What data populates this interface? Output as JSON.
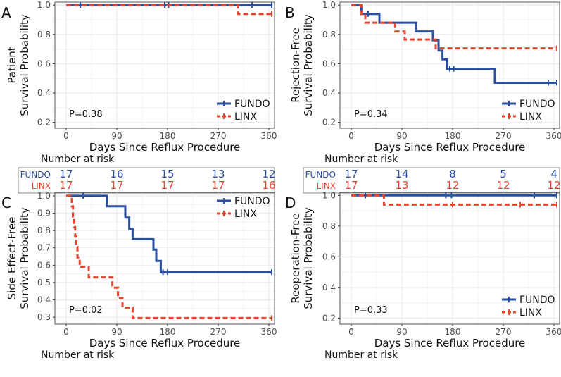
{
  "colors": {
    "fundo": "#2a4ea1",
    "linx": "#e8432e",
    "grid": "#ebebeb",
    "axis": "#333333"
  },
  "figure": {
    "x_axis_label": "Days Since Reflux Procedure",
    "risk_title": "Number at risk"
  },
  "chart_data": [
    {
      "panel_letter": "A",
      "type": "line",
      "subtype": "kaplan-meier",
      "ylabel_line1": "Patient",
      "ylabel_line2": "Survival Probability",
      "xlabel": "Days Since Reflux Procedure",
      "x_ticks": [
        0,
        90,
        180,
        270,
        360
      ],
      "y_ticks": [
        0.2,
        0.4,
        0.6,
        0.8,
        1.0
      ],
      "xlim": [
        -20,
        370
      ],
      "ylim": [
        0.16,
        1.02
      ],
      "p_value": "P=0.38",
      "legend_position": "bottom-right",
      "series": [
        {
          "name": "FUNDO",
          "style": "solid",
          "steps": [
            [
              0,
              1.0
            ],
            [
              365,
              1.0
            ]
          ],
          "censors": [
            [
              25,
              1.0
            ],
            [
              175,
              1.0
            ],
            [
              182,
              1.0
            ],
            [
              330,
              1.0
            ],
            [
              365,
              1.0
            ]
          ]
        },
        {
          "name": "LINX",
          "style": "dashed",
          "steps": [
            [
              0,
              1.0
            ],
            [
              305,
              1.0
            ],
            [
              305,
              0.94
            ],
            [
              365,
              0.94
            ]
          ],
          "censors": [
            [
              365,
              0.94
            ]
          ]
        }
      ],
      "risk_table": {
        "FUNDO": [
          17,
          16,
          15,
          13,
          12
        ],
        "LINX": [
          17,
          17,
          17,
          17,
          16
        ]
      }
    },
    {
      "panel_letter": "B",
      "type": "line",
      "subtype": "kaplan-meier",
      "ylabel_line1": "Rejection-Free",
      "ylabel_line2": "Survival Probability",
      "xlabel": "Days Since Reflux Procedure",
      "x_ticks": [
        0,
        90,
        180,
        270,
        360
      ],
      "y_ticks": [
        0.2,
        0.4,
        0.6,
        0.8,
        1.0
      ],
      "xlim": [
        -20,
        370
      ],
      "ylim": [
        0.16,
        1.02
      ],
      "p_value": "P=0.34",
      "legend_position": "bottom-right",
      "series": [
        {
          "name": "FUNDO",
          "style": "solid",
          "steps": [
            [
              0,
              1.0
            ],
            [
              18,
              1.0
            ],
            [
              18,
              0.94
            ],
            [
              50,
              0.94
            ],
            [
              50,
              0.88
            ],
            [
              115,
              0.88
            ],
            [
              115,
              0.82
            ],
            [
              145,
              0.82
            ],
            [
              145,
              0.76
            ],
            [
              155,
              0.76
            ],
            [
              155,
              0.69
            ],
            [
              162,
              0.69
            ],
            [
              162,
              0.63
            ],
            [
              170,
              0.63
            ],
            [
              170,
              0.565
            ],
            [
              255,
              0.565
            ],
            [
              255,
              0.47
            ],
            [
              365,
              0.47
            ]
          ],
          "censors": [
            [
              30,
              0.94
            ],
            [
              175,
              0.565
            ],
            [
              182,
              0.565
            ],
            [
              350,
              0.47
            ],
            [
              365,
              0.47
            ]
          ]
        },
        {
          "name": "LINX",
          "style": "dashed",
          "steps": [
            [
              0,
              1.0
            ],
            [
              18,
              1.0
            ],
            [
              18,
              0.94
            ],
            [
              25,
              0.94
            ],
            [
              25,
              0.88
            ],
            [
              78,
              0.88
            ],
            [
              78,
              0.82
            ],
            [
              95,
              0.82
            ],
            [
              95,
              0.765
            ],
            [
              150,
              0.765
            ],
            [
              150,
              0.705
            ],
            [
              365,
              0.705
            ]
          ],
          "censors": [
            [
              365,
              0.705
            ]
          ]
        }
      ],
      "risk_table": {
        "FUNDO": [
          17,
          14,
          8,
          5,
          4
        ],
        "LINX": [
          17,
          13,
          12,
          12,
          12
        ]
      }
    },
    {
      "panel_letter": "C",
      "type": "line",
      "subtype": "kaplan-meier",
      "ylabel_line1": "Side Effect-Free",
      "ylabel_line2": "Survival Probability",
      "xlabel": "Days Since Reflux Procedure",
      "x_ticks": [
        0,
        90,
        180,
        270,
        360
      ],
      "y_ticks": [
        0.3,
        0.4,
        0.5,
        0.6,
        0.7,
        0.8,
        0.9,
        1.0
      ],
      "xlim": [
        -20,
        370
      ],
      "ylim": [
        0.26,
        1.02
      ],
      "p_value": "P=0.02",
      "legend_position": "top-right",
      "series": [
        {
          "name": "FUNDO",
          "style": "solid",
          "steps": [
            [
              0,
              1.0
            ],
            [
              72,
              1.0
            ],
            [
              72,
              0.94
            ],
            [
              105,
              0.94
            ],
            [
              105,
              0.875
            ],
            [
              112,
              0.875
            ],
            [
              112,
              0.81
            ],
            [
              118,
              0.81
            ],
            [
              118,
              0.75
            ],
            [
              155,
              0.75
            ],
            [
              155,
              0.69
            ],
            [
              160,
              0.69
            ],
            [
              160,
              0.625
            ],
            [
              168,
              0.625
            ],
            [
              168,
              0.56
            ],
            [
              365,
              0.56
            ]
          ],
          "censors": [
            [
              30,
              1.0
            ],
            [
              172,
              0.56
            ],
            [
              180,
              0.56
            ],
            [
              365,
              0.56
            ]
          ]
        },
        {
          "name": "LINX",
          "style": "dashed",
          "steps": [
            [
              0,
              1.0
            ],
            [
              10,
              1.0
            ],
            [
              10,
              0.94
            ],
            [
              12,
              0.94
            ],
            [
              12,
              0.88
            ],
            [
              14,
              0.88
            ],
            [
              14,
              0.82
            ],
            [
              16,
              0.82
            ],
            [
              16,
              0.765
            ],
            [
              18,
              0.765
            ],
            [
              18,
              0.705
            ],
            [
              20,
              0.705
            ],
            [
              20,
              0.645
            ],
            [
              24,
              0.645
            ],
            [
              24,
              0.59
            ],
            [
              40,
              0.59
            ],
            [
              40,
              0.53
            ],
            [
              82,
              0.53
            ],
            [
              82,
              0.47
            ],
            [
              92,
              0.47
            ],
            [
              92,
              0.41
            ],
            [
              100,
              0.41
            ],
            [
              100,
              0.355
            ],
            [
              118,
              0.355
            ],
            [
              118,
              0.295
            ],
            [
              365,
              0.295
            ]
          ],
          "censors": [
            [
              365,
              0.295
            ]
          ]
        }
      ]
    },
    {
      "panel_letter": "D",
      "type": "line",
      "subtype": "kaplan-meier",
      "ylabel_line1": "Reoperation-Free",
      "ylabel_line2": "Survival Probability",
      "xlabel": "Days Since Reflux Procedure",
      "x_ticks": [
        0,
        90,
        180,
        270,
        360
      ],
      "y_ticks": [
        0.2,
        0.4,
        0.6,
        0.8,
        1.0
      ],
      "xlim": [
        -20,
        370
      ],
      "ylim": [
        0.16,
        1.02
      ],
      "p_value": "P=0.33",
      "legend_position": "bottom-right",
      "series": [
        {
          "name": "FUNDO",
          "style": "solid",
          "steps": [
            [
              0,
              1.0
            ],
            [
              365,
              1.0
            ]
          ],
          "censors": [
            [
              25,
              1.0
            ],
            [
              168,
              1.0
            ],
            [
              178,
              1.0
            ],
            [
              325,
              1.0
            ],
            [
              365,
              1.0
            ]
          ]
        },
        {
          "name": "LINX",
          "style": "dashed",
          "steps": [
            [
              0,
              1.0
            ],
            [
              58,
              1.0
            ],
            [
              58,
              0.94
            ],
            [
              365,
              0.94
            ]
          ],
          "censors": [
            [
              180,
              0.94
            ],
            [
              300,
              0.94
            ],
            [
              365,
              0.94
            ]
          ]
        }
      ]
    }
  ]
}
